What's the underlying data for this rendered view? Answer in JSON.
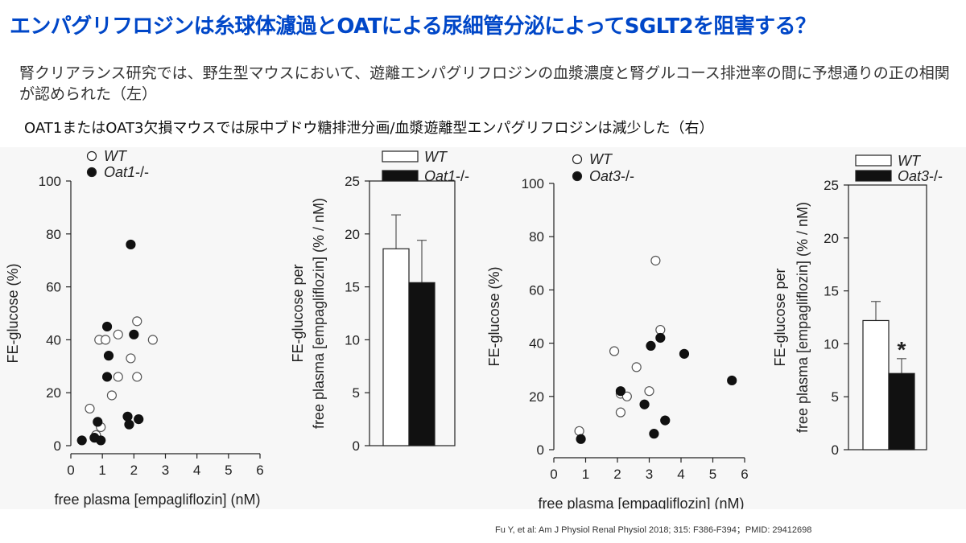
{
  "page": {
    "title": "エンパグリフロジンは糸球体濾過とOATによる尿細管分泌によってSGLT2を阻害する？",
    "description_1": "腎クリアランス研究では、野生型マウスにおいて、遊離エンパグリフロジンの血漿濃度と腎グルコース排泄率の間に予想通りの正の相関が認められた（左）",
    "description_2": "OAT1またはOAT3欠損マウスでは尿中ブドウ糖排泄分画/血漿遊離型エンパグリフロジンは減少した（右）",
    "citation": "Fu Y, et al: Am J Physiol Renal Physiol 2018; 315: F386-F394；PMID: 29412698"
  },
  "colors": {
    "title": "#0047c8",
    "filled": "#111111",
    "open": "#ffffff"
  },
  "chart_data": [
    {
      "type": "scatter",
      "xlabel": "free plasma [empagliflozin] (nM)",
      "ylabel": "FE-glucose (%)",
      "xlim": [
        0,
        6
      ],
      "ylim": [
        0,
        100
      ],
      "xticks": [
        0,
        1,
        2,
        3,
        4,
        5,
        6
      ],
      "yticks": [
        0,
        20,
        40,
        60,
        80,
        100
      ],
      "legend_placement": "top-left",
      "series": [
        {
          "name": "WT",
          "marker": "open",
          "points": [
            [
              0.6,
              14
            ],
            [
              0.8,
              4
            ],
            [
              0.9,
              40
            ],
            [
              0.95,
              7
            ],
            [
              1.1,
              40
            ],
            [
              1.3,
              19
            ],
            [
              1.5,
              26
            ],
            [
              1.5,
              42
            ],
            [
              1.9,
              33
            ],
            [
              2.1,
              47
            ],
            [
              2.1,
              26
            ],
            [
              2.6,
              40
            ]
          ]
        },
        {
          "name": "Oat1-/-",
          "marker": "filled",
          "points": [
            [
              0.35,
              2
            ],
            [
              0.75,
              3
            ],
            [
              0.85,
              9
            ],
            [
              0.95,
              2
            ],
            [
              1.15,
              45
            ],
            [
              1.15,
              26
            ],
            [
              1.2,
              34
            ],
            [
              1.8,
              11
            ],
            [
              1.85,
              8
            ],
            [
              1.9,
              76
            ],
            [
              2.0,
              42
            ],
            [
              2.15,
              10
            ]
          ]
        }
      ]
    },
    {
      "type": "bar",
      "ylabel": "FE-glucose per free plasma [empagliflozin] (% / nM)",
      "ylim": [
        0,
        25
      ],
      "yticks": [
        0,
        5,
        10,
        15,
        20,
        25
      ],
      "legend_placement": "top",
      "series": [
        {
          "name": "WT",
          "fill": "open",
          "value": 18.6,
          "error": 3.2
        },
        {
          "name": "Oat1-/-",
          "fill": "filled",
          "value": 15.4,
          "error": 4.0
        }
      ]
    },
    {
      "type": "scatter",
      "xlabel": "free plasma [empagliflozin] (nM)",
      "ylabel": "FE-glucose (%)",
      "xlim": [
        0,
        6
      ],
      "ylim": [
        0,
        100
      ],
      "xticks": [
        0,
        1,
        2,
        3,
        4,
        5,
        6
      ],
      "yticks": [
        0,
        20,
        40,
        60,
        80,
        100
      ],
      "legend_placement": "top-left",
      "series": [
        {
          "name": "WT",
          "marker": "open",
          "points": [
            [
              0.8,
              7
            ],
            [
              1.9,
              37
            ],
            [
              2.1,
              14
            ],
            [
              2.1,
              21
            ],
            [
              2.3,
              20
            ],
            [
              2.6,
              31
            ],
            [
              3.0,
              22
            ],
            [
              3.2,
              71
            ],
            [
              3.35,
              45
            ]
          ]
        },
        {
          "name": "Oat3-/-",
          "marker": "filled",
          "points": [
            [
              0.85,
              4
            ],
            [
              2.1,
              22
            ],
            [
              2.85,
              17
            ],
            [
              3.05,
              39
            ],
            [
              3.15,
              6
            ],
            [
              3.35,
              42
            ],
            [
              3.5,
              11
            ],
            [
              4.1,
              36
            ],
            [
              5.6,
              26
            ]
          ]
        }
      ]
    },
    {
      "type": "bar",
      "ylabel": "FE-glucose per free plasma [empagliflozin] (% / nM)",
      "ylim": [
        0,
        25
      ],
      "yticks": [
        0,
        5,
        10,
        15,
        20,
        25
      ],
      "legend_placement": "top",
      "annotation": "*",
      "series": [
        {
          "name": "WT",
          "fill": "open",
          "value": 12.2,
          "error": 1.8
        },
        {
          "name": "Oat3-/-",
          "fill": "filled",
          "value": 7.2,
          "error": 1.4
        }
      ]
    }
  ]
}
